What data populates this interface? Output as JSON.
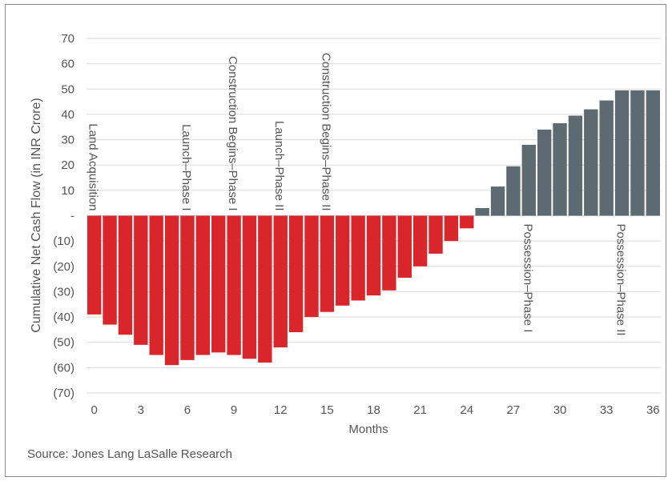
{
  "source": "Source: Jones Lang LaSalle Research",
  "chart_data": {
    "type": "bar",
    "xlabel": "Months",
    "ylabel": "Cumulative Net Cash Flow (in INR Crore)",
    "ylim": [
      -70,
      70
    ],
    "yticks": [
      70,
      60,
      50,
      40,
      30,
      20,
      10,
      0,
      -10,
      -20,
      -30,
      -40,
      -50,
      -60,
      -70
    ],
    "yticklabels": [
      "70",
      "60",
      "50",
      "40",
      "30",
      "20",
      "10",
      "-",
      "(10)",
      "(20)",
      "(30)",
      "(40)",
      "(50)",
      "(60)",
      "(70)"
    ],
    "x": [
      0,
      1,
      2,
      3,
      4,
      5,
      6,
      7,
      8,
      9,
      10,
      11,
      12,
      13,
      14,
      15,
      16,
      17,
      18,
      19,
      20,
      21,
      22,
      23,
      24,
      25,
      26,
      27,
      28,
      29,
      30,
      31,
      32,
      33,
      34,
      35,
      36
    ],
    "xticks": [
      0,
      3,
      6,
      9,
      12,
      15,
      18,
      21,
      24,
      27,
      30,
      33,
      36
    ],
    "values": [
      -39,
      -43,
      -47,
      -51,
      -55,
      -59,
      -57,
      -55,
      -54,
      -55,
      -56.5,
      -58,
      -52,
      -46,
      -40,
      -38,
      -35.5,
      -33.5,
      -31.5,
      -29.5,
      -24.5,
      -20,
      -15,
      -10,
      -5,
      3,
      11.5,
      19.5,
      28,
      34,
      36.5,
      39.5,
      42,
      45.5,
      49.5,
      49.5,
      49.5
    ],
    "colors": {
      "negative": "#d9262b",
      "positive": "#5e6a71"
    },
    "grid": "horizontal",
    "annotations": [
      {
        "text": "Land Acquisition",
        "x": 0,
        "side": "above"
      },
      {
        "text": "Launch–Phase I",
        "x": 6,
        "side": "above"
      },
      {
        "text": "Construction Begins–Phase I",
        "x": 9,
        "side": "above"
      },
      {
        "text": "Launch–Phase II",
        "x": 12,
        "side": "above"
      },
      {
        "text": "Construction Begins–Phase II",
        "x": 15,
        "side": "above"
      },
      {
        "text": "Possession–Phase I",
        "x": 28,
        "side": "below"
      },
      {
        "text": "Possession–Phase II",
        "x": 34,
        "side": "below"
      }
    ]
  }
}
